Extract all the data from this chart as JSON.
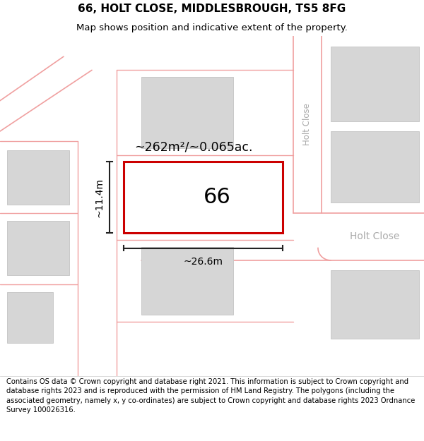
{
  "title": "66, HOLT CLOSE, MIDDLESBROUGH, TS5 8FG",
  "subtitle": "Map shows position and indicative extent of the property.",
  "footer": "Contains OS data © Crown copyright and database right 2021. This information is subject to Crown copyright and database rights 2023 and is reproduced with the permission of HM Land Registry. The polygons (including the associated geometry, namely x, y co-ordinates) are subject to Crown copyright and database rights 2023 Ordnance Survey 100026316.",
  "map_background": "#f7f4f4",
  "road_color": "#f0a0a0",
  "building_fill": "#d6d6d6",
  "building_edge": "#c8c8c8",
  "highlight_fill": "#ffffff",
  "highlight_edge": "#cc0000",
  "dim_line_color": "#222222",
  "street_label_color": "#aaaaaa",
  "area_text": "~262m²/~0.065ac.",
  "number_text": "66",
  "dim_width": "~26.6m",
  "dim_height": "~11.4m",
  "street_name_vertical": "Holt Close",
  "street_name_horizontal": "Holt Close",
  "title_fontsize": 11,
  "subtitle_fontsize": 9.5,
  "footer_fontsize": 7.2
}
